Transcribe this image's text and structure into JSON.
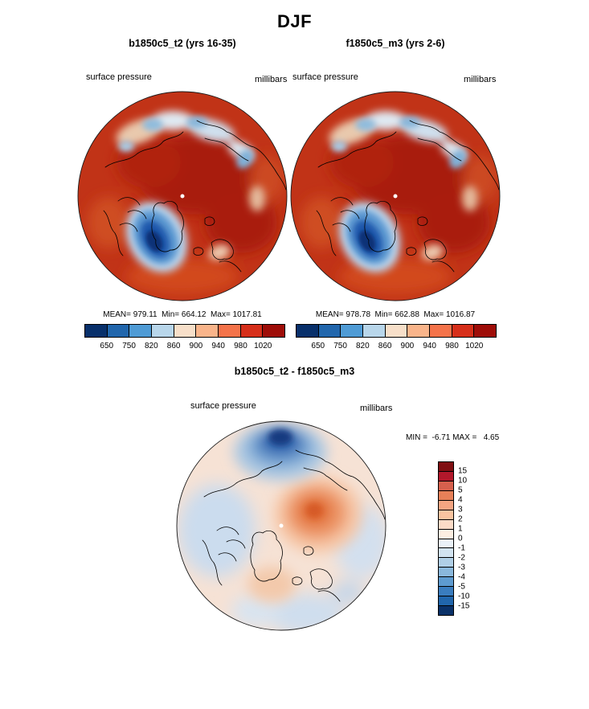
{
  "page_title": "DJF",
  "top": {
    "left": {
      "title": "b1850c5_t2 (yrs 16-35)",
      "field": "surface pressure",
      "units": "millibars",
      "stats": "MEAN= 979.11  Min= 664.12  Max= 1017.81"
    },
    "right": {
      "title": "f1850c5_m3 (yrs 2-6)",
      "field": "surface pressure",
      "units": "millibars",
      "stats": "MEAN= 978.78  Min= 662.88  Max= 1016.87"
    },
    "colorbar": {
      "ticks": [
        "650",
        "750",
        "820",
        "860",
        "900",
        "940",
        "980",
        "1020"
      ],
      "colors": [
        "#08306b",
        "#2166ac",
        "#4f9bd5",
        "#b8d6ea",
        "#f7dfc9",
        "#f9b48a",
        "#f4734a",
        "#d62f1a",
        "#9e0d08"
      ]
    }
  },
  "diff": {
    "title": "b1850c5_t2 - f1850c5_m3",
    "field": "surface pressure",
    "units": "millibars",
    "stats": "MIN =  -6.71 MAX =   4.65",
    "colorbar": {
      "ticks": [
        "15",
        "10",
        "5",
        "4",
        "3",
        "2",
        "1",
        "0",
        "-1",
        "-2",
        "-3",
        "-4",
        "-5",
        "-10",
        "-15"
      ],
      "colors": [
        "#800f12",
        "#b2182b",
        "#d6604d",
        "#e78058",
        "#f4a582",
        "#f9c4a0",
        "#fcdbc7",
        "#fdeee2",
        "#eaf1f8",
        "#d2e3f0",
        "#b0cfe6",
        "#8ab8dc",
        "#5e9bd0",
        "#3a7dbf",
        "#2166ac",
        "#0a3168"
      ]
    }
  },
  "chart_data": [
    {
      "type": "heatmap",
      "projection": "polar-stereographic",
      "season": "DJF",
      "title": "b1850c5_t2 (yrs 16-35)",
      "variable": "surface pressure",
      "units": "millibars",
      "mean": 979.11,
      "min": 664.12,
      "max": 1017.81,
      "contour_levels": [
        650,
        750,
        820,
        860,
        900,
        940,
        980,
        1020
      ],
      "legend_position": "below",
      "notes": "Mostly dark red (>1020 mb) over Arctic; deep blue low values over Greenland ice sheet; pale/blue patches over high terrain near map edge"
    },
    {
      "type": "heatmap",
      "projection": "polar-stereographic",
      "season": "DJF",
      "title": "f1850c5_m3 (yrs 2-6)",
      "variable": "surface pressure",
      "units": "millibars",
      "mean": 978.78,
      "min": 662.88,
      "max": 1016.87,
      "contour_levels": [
        650,
        750,
        820,
        860,
        900,
        940,
        980,
        1020
      ],
      "legend_position": "below"
    },
    {
      "type": "heatmap",
      "projection": "polar-stereographic",
      "season": "DJF",
      "title": "b1850c5_t2 - f1850c5_m3",
      "variable": "surface pressure difference",
      "units": "millibars",
      "min": -6.71,
      "max": 4.65,
      "contour_levels": [
        -15,
        -10,
        -5,
        -4,
        -3,
        -2,
        -1,
        0,
        1,
        2,
        3,
        4,
        5,
        10,
        15
      ],
      "legend_position": "right",
      "notes": "Negative (blue) center near pole-top region, positive (orange) anomaly right of pole"
    }
  ]
}
